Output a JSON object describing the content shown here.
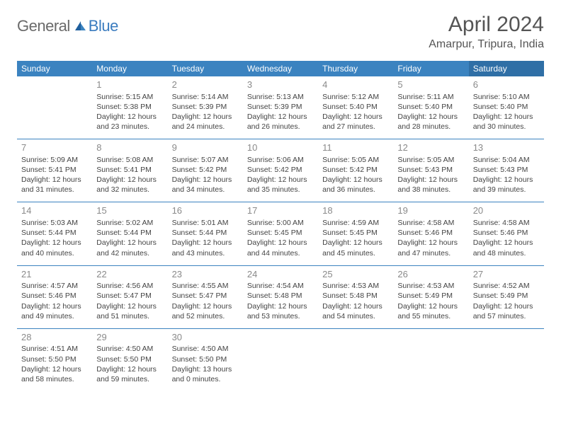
{
  "brand": {
    "part1": "General",
    "part2": "Blue"
  },
  "title": "April 2024",
  "location": "Amarpur, Tripura, India",
  "colors": {
    "header_bg": "#3b83c0",
    "sat_header_bg": "#2f6fa6",
    "rule": "#3b83c0",
    "daynum": "#8a8a8a",
    "text": "#444444",
    "title": "#555555",
    "logo_gray": "#6a6a6a",
    "logo_blue": "#3b7cbf"
  },
  "dow": [
    "Sunday",
    "Monday",
    "Tuesday",
    "Wednesday",
    "Thursday",
    "Friday",
    "Saturday"
  ],
  "weeks": [
    [
      null,
      {
        "n": "1",
        "sr": "5:15 AM",
        "ss": "5:38 PM",
        "dl": "12 hours and 23 minutes."
      },
      {
        "n": "2",
        "sr": "5:14 AM",
        "ss": "5:39 PM",
        "dl": "12 hours and 24 minutes."
      },
      {
        "n": "3",
        "sr": "5:13 AM",
        "ss": "5:39 PM",
        "dl": "12 hours and 26 minutes."
      },
      {
        "n": "4",
        "sr": "5:12 AM",
        "ss": "5:40 PM",
        "dl": "12 hours and 27 minutes."
      },
      {
        "n": "5",
        "sr": "5:11 AM",
        "ss": "5:40 PM",
        "dl": "12 hours and 28 minutes."
      },
      {
        "n": "6",
        "sr": "5:10 AM",
        "ss": "5:40 PM",
        "dl": "12 hours and 30 minutes."
      }
    ],
    [
      {
        "n": "7",
        "sr": "5:09 AM",
        "ss": "5:41 PM",
        "dl": "12 hours and 31 minutes."
      },
      {
        "n": "8",
        "sr": "5:08 AM",
        "ss": "5:41 PM",
        "dl": "12 hours and 32 minutes."
      },
      {
        "n": "9",
        "sr": "5:07 AM",
        "ss": "5:42 PM",
        "dl": "12 hours and 34 minutes."
      },
      {
        "n": "10",
        "sr": "5:06 AM",
        "ss": "5:42 PM",
        "dl": "12 hours and 35 minutes."
      },
      {
        "n": "11",
        "sr": "5:05 AM",
        "ss": "5:42 PM",
        "dl": "12 hours and 36 minutes."
      },
      {
        "n": "12",
        "sr": "5:05 AM",
        "ss": "5:43 PM",
        "dl": "12 hours and 38 minutes."
      },
      {
        "n": "13",
        "sr": "5:04 AM",
        "ss": "5:43 PM",
        "dl": "12 hours and 39 minutes."
      }
    ],
    [
      {
        "n": "14",
        "sr": "5:03 AM",
        "ss": "5:44 PM",
        "dl": "12 hours and 40 minutes."
      },
      {
        "n": "15",
        "sr": "5:02 AM",
        "ss": "5:44 PM",
        "dl": "12 hours and 42 minutes."
      },
      {
        "n": "16",
        "sr": "5:01 AM",
        "ss": "5:44 PM",
        "dl": "12 hours and 43 minutes."
      },
      {
        "n": "17",
        "sr": "5:00 AM",
        "ss": "5:45 PM",
        "dl": "12 hours and 44 minutes."
      },
      {
        "n": "18",
        "sr": "4:59 AM",
        "ss": "5:45 PM",
        "dl": "12 hours and 45 minutes."
      },
      {
        "n": "19",
        "sr": "4:58 AM",
        "ss": "5:46 PM",
        "dl": "12 hours and 47 minutes."
      },
      {
        "n": "20",
        "sr": "4:58 AM",
        "ss": "5:46 PM",
        "dl": "12 hours and 48 minutes."
      }
    ],
    [
      {
        "n": "21",
        "sr": "4:57 AM",
        "ss": "5:46 PM",
        "dl": "12 hours and 49 minutes."
      },
      {
        "n": "22",
        "sr": "4:56 AM",
        "ss": "5:47 PM",
        "dl": "12 hours and 51 minutes."
      },
      {
        "n": "23",
        "sr": "4:55 AM",
        "ss": "5:47 PM",
        "dl": "12 hours and 52 minutes."
      },
      {
        "n": "24",
        "sr": "4:54 AM",
        "ss": "5:48 PM",
        "dl": "12 hours and 53 minutes."
      },
      {
        "n": "25",
        "sr": "4:53 AM",
        "ss": "5:48 PM",
        "dl": "12 hours and 54 minutes."
      },
      {
        "n": "26",
        "sr": "4:53 AM",
        "ss": "5:49 PM",
        "dl": "12 hours and 55 minutes."
      },
      {
        "n": "27",
        "sr": "4:52 AM",
        "ss": "5:49 PM",
        "dl": "12 hours and 57 minutes."
      }
    ],
    [
      {
        "n": "28",
        "sr": "4:51 AM",
        "ss": "5:50 PM",
        "dl": "12 hours and 58 minutes."
      },
      {
        "n": "29",
        "sr": "4:50 AM",
        "ss": "5:50 PM",
        "dl": "12 hours and 59 minutes."
      },
      {
        "n": "30",
        "sr": "4:50 AM",
        "ss": "5:50 PM",
        "dl": "13 hours and 0 minutes."
      },
      null,
      null,
      null,
      null
    ]
  ],
  "labels": {
    "sunrise": "Sunrise: ",
    "sunset": "Sunset: ",
    "daylight": "Daylight: "
  }
}
